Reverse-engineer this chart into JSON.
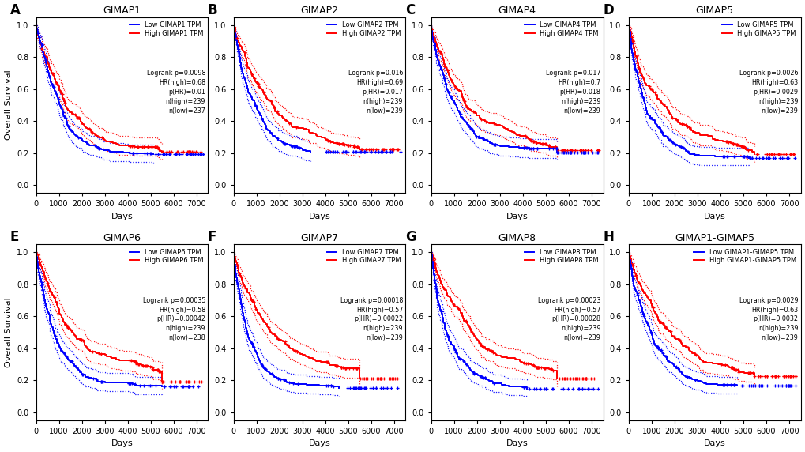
{
  "panels": [
    {
      "label": "A",
      "title": "GIMAP1",
      "gene": "GIMAP1",
      "logrank_p": "0.0098",
      "hr_high": "0.68",
      "p_hr": "0.01",
      "n_high": 239,
      "n_low": 237
    },
    {
      "label": "B",
      "title": "GIMAP2",
      "gene": "GIMAP2",
      "logrank_p": "0.016",
      "hr_high": "0.69",
      "p_hr": "0.017",
      "n_high": 239,
      "n_low": 239
    },
    {
      "label": "C",
      "title": "GIMAP4",
      "gene": "GIMAP4",
      "logrank_p": "0.017",
      "hr_high": "0.7",
      "p_hr": "0.018",
      "n_high": 239,
      "n_low": 239
    },
    {
      "label": "D",
      "title": "GIMAP5",
      "gene": "GIMAP5",
      "logrank_p": "0.0026",
      "hr_high": "0.63",
      "p_hr": "0.0029",
      "n_high": 239,
      "n_low": 239
    },
    {
      "label": "E",
      "title": "GIMAP6",
      "gene": "GIMAP6",
      "logrank_p": "0.00035",
      "hr_high": "0.58",
      "p_hr": "0.00042",
      "n_high": 239,
      "n_low": 238
    },
    {
      "label": "F",
      "title": "GIMAP7",
      "gene": "GIMAP7",
      "logrank_p": "0.00018",
      "hr_high": "0.57",
      "p_hr": "0.00022",
      "n_high": 239,
      "n_low": 239
    },
    {
      "label": "G",
      "title": "GIMAP8",
      "gene": "GIMAP8",
      "logrank_p": "0.00023",
      "hr_high": "0.57",
      "p_hr": "0.00028",
      "n_high": 239,
      "n_low": 239
    },
    {
      "label": "H",
      "title": "GIMAP1-GIMAP5",
      "gene": "GIMAP1-GIMAP5",
      "logrank_p": "0.0029",
      "hr_high": "0.63",
      "p_hr": "0.0032",
      "n_high": 239,
      "n_low": 239
    }
  ],
  "color_high": "#FF0000",
  "color_low": "#0000FF",
  "bg_color": "#FFFFFF",
  "xlim": [
    0,
    7500
  ],
  "ylim": [
    -0.05,
    1.05
  ],
  "xticks": [
    0,
    1000,
    2000,
    3000,
    4000,
    5000,
    6000,
    7000
  ],
  "yticks": [
    0.0,
    0.2,
    0.4,
    0.6,
    0.8,
    1.0
  ],
  "xlabel": "Days",
  "ylabel": "Overall Survival"
}
